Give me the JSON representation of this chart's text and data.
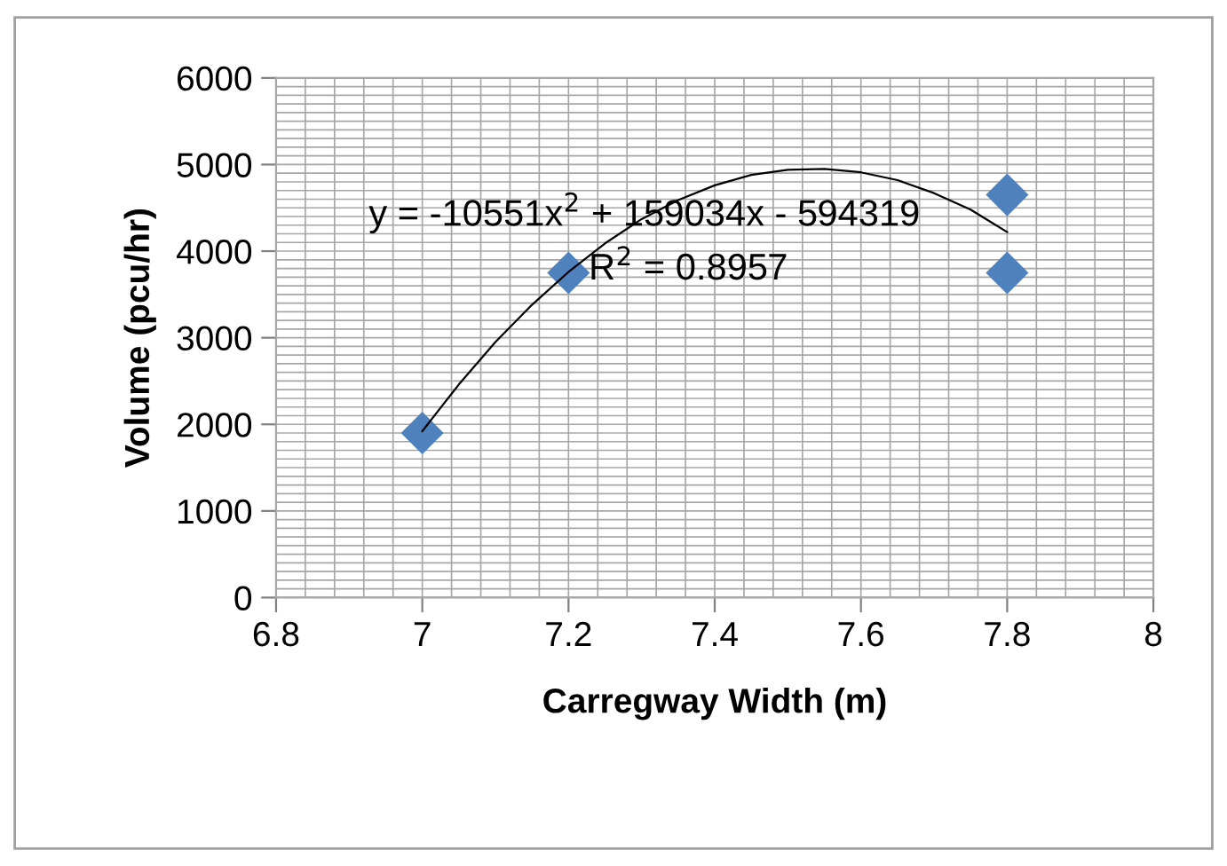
{
  "chart_data": {
    "type": "scatter",
    "xlabel": "Carregway Width (m)",
    "ylabel": "Volume (pcu/hr)",
    "series": [
      {
        "color": "#4f81bd",
        "marker": "diamond",
        "x": [
          7,
          7.2,
          7.8,
          7.8
        ],
        "values": [
          1900,
          3750,
          4650,
          3750
        ]
      },
      {
        "type": "line",
        "color": "#000000",
        "marker": "none",
        "line_style": "solid",
        "x": [
          7,
          7.05,
          7.1,
          7.15,
          7.2,
          7.25,
          7.3,
          7.35,
          7.4,
          7.45,
          7.5,
          7.55,
          7.6,
          7.65,
          7.7,
          7.75,
          7.8
        ],
        "values": [
          1920,
          2460,
          2950,
          3380,
          3760,
          4090,
          4370,
          4590,
          4760,
          4880,
          4940,
          4950,
          4910,
          4820,
          4670,
          4480,
          4220
        ]
      }
    ],
    "annotations": [
      "y = -10551x$^{2}$ + 159034x - 594319",
      "R$^{2}$ = 0.8957"
    ],
    "xlim": [
      6.8,
      8
    ],
    "xticks": [
      6.8,
      7,
      7.2,
      7.4,
      7.6,
      7.8,
      8
    ],
    "ylim": [
      0,
      6000
    ],
    "yticks": [
      0,
      1000,
      2000,
      3000,
      4000,
      5000,
      6000
    ],
    "grid": true,
    "legend": false
  }
}
